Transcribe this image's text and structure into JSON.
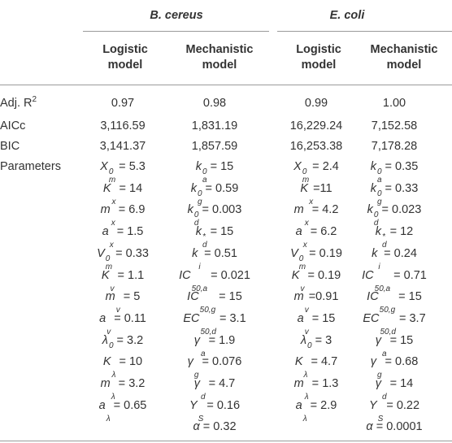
{
  "groups": [
    {
      "name": "B. cereus"
    },
    {
      "name": "E. coli"
    }
  ],
  "column_headers": [
    {
      "line1": "Logistic",
      "line2": "model"
    },
    {
      "line1": "Mechanistic",
      "line2": "model"
    },
    {
      "line1": "Logistic",
      "line2": "model"
    },
    {
      "line1": "Mechanistic",
      "line2": "model"
    }
  ],
  "rows": [
    {
      "label": "Adj. R",
      "label_sup": "2",
      "cells": [
        "0.97",
        "0.98",
        "0.99",
        "1.00"
      ]
    },
    {
      "label": "AICc",
      "cells": [
        "3,116.59",
        "1,831.19",
        "16,229.24",
        "7,152.58"
      ]
    },
    {
      "label": "BIC",
      "cells": [
        "3,141.37",
        "1,857.59",
        "16,253.38",
        "7,178.28"
      ]
    }
  ],
  "parameters_label": "Parameters",
  "parameters": [
    [
      {
        "sym": "X",
        "sup": "0",
        "sub": "m",
        "op": " = ",
        "val": "5.3"
      },
      {
        "sym": "K",
        "sub": "x",
        "op": " = ",
        "val": "14"
      },
      {
        "sym": "m",
        "sub": "x",
        "op": " = ",
        "val": "6.9"
      },
      {
        "sym": "a",
        "sub": "x",
        "op": " = ",
        "val": "1.5"
      },
      {
        "sym": "V",
        "sup": "0",
        "sub": "m",
        "op": " = ",
        "val": "0.33"
      },
      {
        "sym": "K",
        "sub": "v",
        "op": " = ",
        "val": "1.1"
      },
      {
        "sym": "m",
        "sub": "v",
        "op": " = ",
        "val": "5"
      },
      {
        "sym": "a",
        "sub": "v",
        "op": " = ",
        "val": "0.11"
      },
      {
        "sym": "λ",
        "sup": "0",
        "op": " = ",
        "val": "3.2"
      },
      {
        "sym": "K",
        "sub": "λ",
        "op": " = ",
        "val": "10"
      },
      {
        "sym": "m",
        "sub": "λ",
        "op": " = ",
        "val": "3.2"
      },
      {
        "sym": "a",
        "sub": "λ",
        "op": " = ",
        "val": "0.65"
      }
    ],
    [
      {
        "sym": "k",
        "sup": "0",
        "sub": "a",
        "op": " = ",
        "val": "15"
      },
      {
        "sym": "k",
        "sup": "0",
        "sub": "g",
        "op": " = ",
        "val": "0.59"
      },
      {
        "sym": "k",
        "sup": "0",
        "sub": "d",
        "op": " = ",
        "val": "0.003"
      },
      {
        "sym": "k",
        "sup": "*",
        "sub": "d",
        "op": " = ",
        "val": "15"
      },
      {
        "sym": "k",
        "sub": "i",
        "op": " = ",
        "val": "0.51"
      },
      {
        "sym": "IC",
        "sub": "50,a",
        "op": " = ",
        "val": "0.021"
      },
      {
        "sym": "IC",
        "sub": "50,g",
        "op": " = ",
        "val": "15"
      },
      {
        "sym": "EC",
        "sub": "50,d",
        "op": " = ",
        "val": "3.1"
      },
      {
        "sym": "γ",
        "sub": "a",
        "op": " = ",
        "val": "1.9"
      },
      {
        "sym": "γ",
        "sub": "g",
        "op": " = ",
        "val": "0.076"
      },
      {
        "sym": "γ",
        "sub": "d",
        "op": " = ",
        "val": "4.7"
      },
      {
        "sym": "Y",
        "sub": "S",
        "op": " = ",
        "val": "0.16"
      },
      {
        "sym": "α",
        "op": " = ",
        "val": "0.32"
      }
    ],
    [
      {
        "sym": "X",
        "sup": "0",
        "sub": "m",
        "op": " = ",
        "val": "2.4"
      },
      {
        "sym": "K",
        "sub": "x",
        "op": "=",
        "val": "11"
      },
      {
        "sym": "m",
        "sub": "x",
        "op": " = ",
        "val": "4.2"
      },
      {
        "sym": "a",
        "sub": "x",
        "op": " = ",
        "val": "6.2"
      },
      {
        "sym": "V",
        "sup": "0",
        "sub": "m",
        "op": " = ",
        "val": "0.19"
      },
      {
        "sym": "K",
        "sub": "v",
        "op": " = ",
        "val": "0.19"
      },
      {
        "sym": "m",
        "sub": "v",
        "op": "=",
        "val": "0.91"
      },
      {
        "sym": "a",
        "sub": "v",
        "op": " = ",
        "val": "15"
      },
      {
        "sym": "λ",
        "sup": "0",
        "op": " = ",
        "val": "3"
      },
      {
        "sym": "K",
        "sub": "λ",
        "op": " = ",
        "val": "4.7"
      },
      {
        "sym": "m",
        "sub": "λ",
        "op": " = ",
        "val": "1.3"
      },
      {
        "sym": "a",
        "sub": "λ",
        "op": " = ",
        "val": "2.9"
      }
    ],
    [
      {
        "sym": "k",
        "sup": "0",
        "sub": "a",
        "op": " = ",
        "val": "0.35"
      },
      {
        "sym": "k",
        "sup": "0",
        "sub": "g",
        "op": " = ",
        "val": "0.33"
      },
      {
        "sym": "k",
        "sup": "0",
        "sub": "d",
        "op": " = ",
        "val": "0.023"
      },
      {
        "sym": "k",
        "sup": "*",
        "sub": "d",
        "op": " = ",
        "val": "12"
      },
      {
        "sym": "k",
        "sub": "i",
        "op": " = ",
        "val": "0.24"
      },
      {
        "sym": "IC",
        "sub": "50,a",
        "op": " = ",
        "val": "0.71"
      },
      {
        "sym": "IC",
        "sub": "50,g",
        "op": " = ",
        "val": "15"
      },
      {
        "sym": "EC",
        "sub": "50,d",
        "op": " = ",
        "val": "3.7"
      },
      {
        "sym": "γ",
        "sub": "a",
        "op": " = ",
        "val": "15"
      },
      {
        "sym": "γ",
        "sub": "g",
        "op": " = ",
        "val": "0.68"
      },
      {
        "sym": "γ",
        "sub": "d",
        "op": " = ",
        "val": "14"
      },
      {
        "sym": "Y",
        "sub": "S",
        "op": " = ",
        "val": "0.22"
      },
      {
        "sym": "α",
        "op": " = ",
        "val": "0.0001"
      }
    ]
  ]
}
